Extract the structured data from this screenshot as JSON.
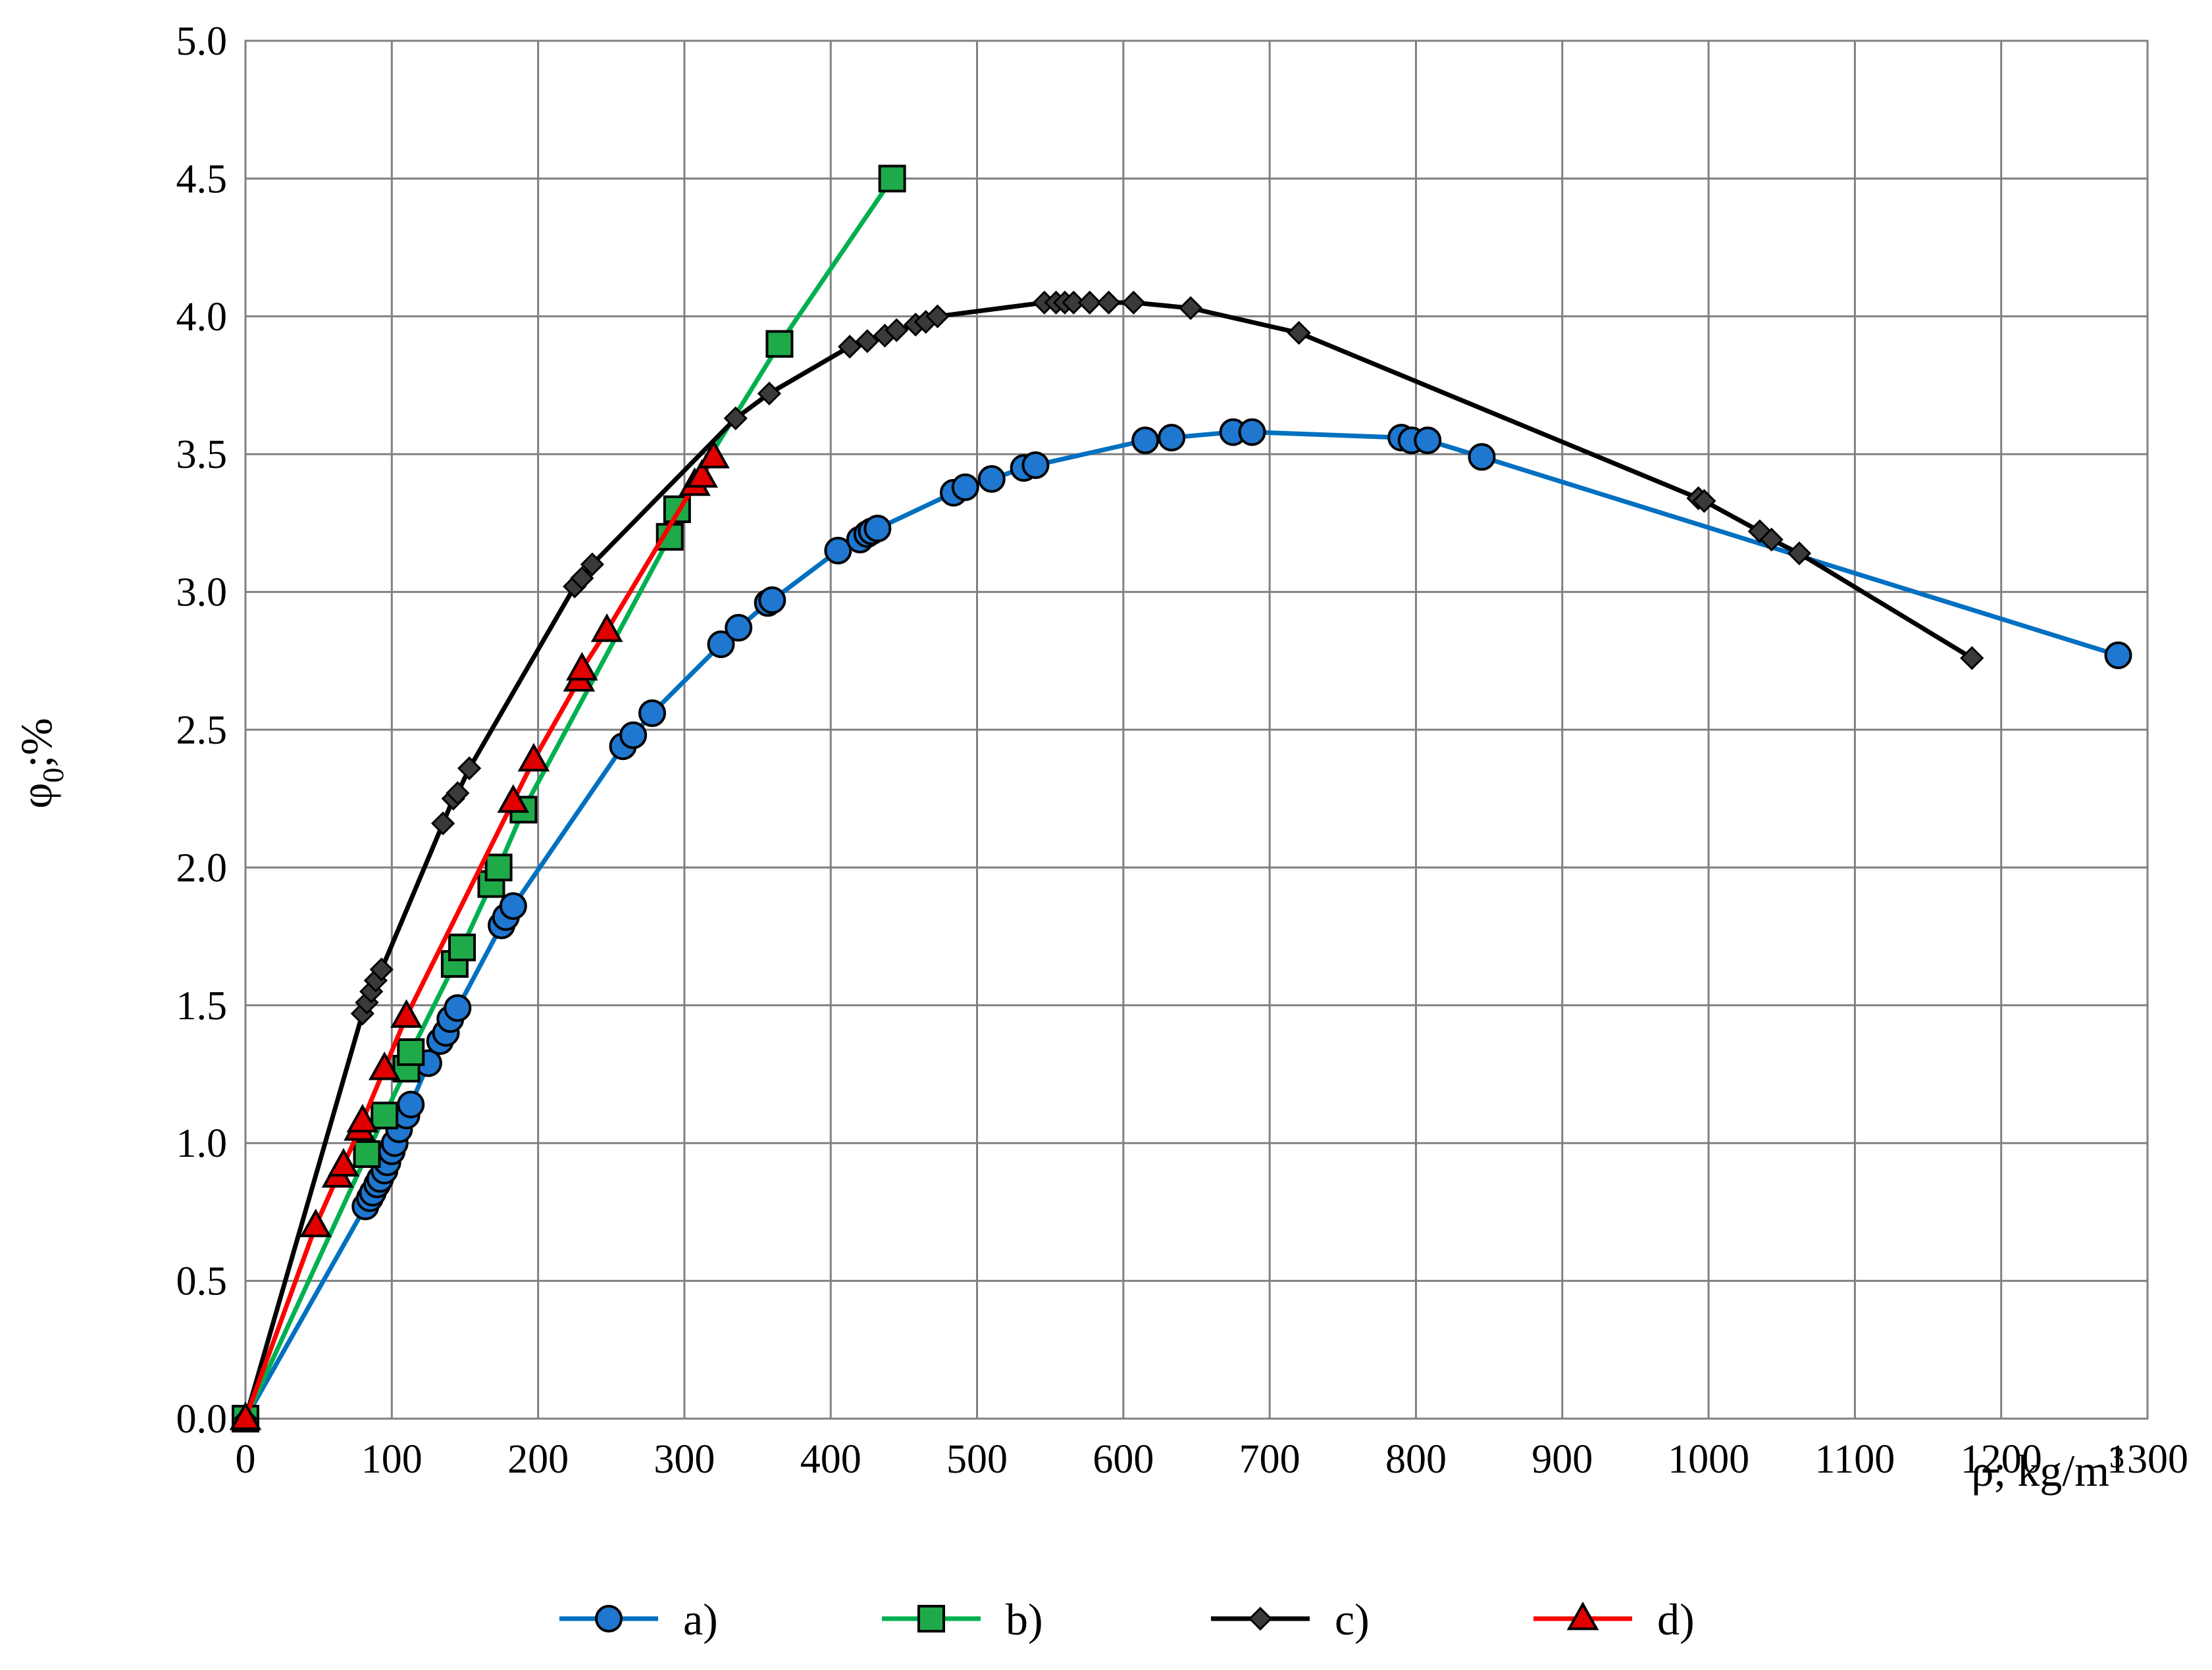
{
  "chart_data": {
    "type": "line",
    "title": "",
    "xlabel": "ρ; kg/m",
    "xlabel_superscript": "3",
    "ylabel": "φ",
    "ylabel_subscript": "0",
    "ylabel_suffix": ";%",
    "xlim": [
      0,
      1300
    ],
    "ylim": [
      0,
      5
    ],
    "grid": true,
    "x_ticks": [
      "0",
      "100",
      "200",
      "300",
      "400",
      "500",
      "600",
      "700",
      "800",
      "900",
      "1000",
      "1100",
      "1200",
      "1300"
    ],
    "y_ticks": [
      "0.0",
      "0.5",
      "1.0",
      "1.5",
      "2.0",
      "2.5",
      "3.0",
      "3.5",
      "4.0",
      "4.5",
      "5.0"
    ],
    "legend_position": "bottom",
    "series": [
      {
        "name": "a)",
        "color": "#0070C0",
        "marker": "circle",
        "marker_fill": "#1F77D0",
        "points": [
          [
            0,
            0
          ],
          [
            82,
            0.77
          ],
          [
            85,
            0.8
          ],
          [
            87,
            0.82
          ],
          [
            90,
            0.85
          ],
          [
            92,
            0.87
          ],
          [
            95,
            0.9
          ],
          [
            97,
            0.93
          ],
          [
            100,
            0.97
          ],
          [
            102,
            1.0
          ],
          [
            105,
            1.05
          ],
          [
            110,
            1.1
          ],
          [
            113,
            1.14
          ],
          [
            125,
            1.29
          ],
          [
            133,
            1.37
          ],
          [
            137,
            1.4
          ],
          [
            140,
            1.45
          ],
          [
            145,
            1.49
          ],
          [
            175,
            1.79
          ],
          [
            178,
            1.82
          ],
          [
            183,
            1.86
          ],
          [
            258,
            2.44
          ],
          [
            265,
            2.48
          ],
          [
            278,
            2.56
          ],
          [
            325,
            2.81
          ],
          [
            337,
            2.87
          ],
          [
            357,
            2.96
          ],
          [
            360,
            2.97
          ],
          [
            405,
            3.15
          ],
          [
            420,
            3.19
          ],
          [
            425,
            3.21
          ],
          [
            428,
            3.22
          ],
          [
            432,
            3.23
          ],
          [
            484,
            3.36
          ],
          [
            492,
            3.38
          ],
          [
            510,
            3.41
          ],
          [
            532,
            3.45
          ],
          [
            540,
            3.46
          ],
          [
            615,
            3.55
          ],
          [
            633,
            3.56
          ],
          [
            675,
            3.58
          ],
          [
            688,
            3.58
          ],
          [
            790,
            3.56
          ],
          [
            797,
            3.55
          ],
          [
            808,
            3.55
          ],
          [
            845,
            3.49
          ],
          [
            1280,
            2.77
          ]
        ]
      },
      {
        "name": "b)",
        "color": "#00B050",
        "marker": "square",
        "marker_fill": "#1FAA4A",
        "points": [
          [
            0,
            0
          ],
          [
            83,
            0.96
          ],
          [
            95,
            1.1
          ],
          [
            110,
            1.27
          ],
          [
            113,
            1.33
          ],
          [
            143,
            1.65
          ],
          [
            148,
            1.71
          ],
          [
            168,
            1.94
          ],
          [
            173,
            2.0
          ],
          [
            190,
            2.21
          ],
          [
            290,
            3.2
          ],
          [
            295,
            3.3
          ],
          [
            365,
            3.9
          ],
          [
            442,
            4.5
          ]
        ]
      },
      {
        "name": "c)",
        "color": "#000000",
        "marker": "diamond",
        "marker_fill": "#3A3A3A",
        "points": [
          [
            0,
            0
          ],
          [
            80,
            1.47
          ],
          [
            83,
            1.51
          ],
          [
            86,
            1.55
          ],
          [
            89,
            1.59
          ],
          [
            93,
            1.63
          ],
          [
            135,
            2.16
          ],
          [
            142,
            2.25
          ],
          [
            145,
            2.27
          ],
          [
            153,
            2.36
          ],
          [
            225,
            3.02
          ],
          [
            230,
            3.05
          ],
          [
            237,
            3.1
          ],
          [
            335,
            3.63
          ],
          [
            358,
            3.72
          ],
          [
            413,
            3.89
          ],
          [
            425,
            3.91
          ],
          [
            437,
            3.93
          ],
          [
            445,
            3.95
          ],
          [
            458,
            3.97
          ],
          [
            465,
            3.98
          ],
          [
            473,
            4.0
          ],
          [
            546,
            4.05
          ],
          [
            554,
            4.05
          ],
          [
            560,
            4.05
          ],
          [
            566,
            4.05
          ],
          [
            577,
            4.05
          ],
          [
            590,
            4.05
          ],
          [
            607,
            4.05
          ],
          [
            646,
            4.03
          ],
          [
            720,
            3.94
          ],
          [
            993,
            3.34
          ],
          [
            997,
            3.33
          ],
          [
            1035,
            3.22
          ],
          [
            1043,
            3.19
          ],
          [
            1062,
            3.14
          ],
          [
            1180,
            2.76
          ]
        ]
      },
      {
        "name": "d)",
        "color": "#FF0000",
        "marker": "triangle",
        "marker_fill": "#E00000",
        "points": [
          [
            0,
            0
          ],
          [
            48,
            0.7
          ],
          [
            63,
            0.88
          ],
          [
            67,
            0.92
          ],
          [
            78,
            1.05
          ],
          [
            80,
            1.08
          ],
          [
            95,
            1.27
          ],
          [
            110,
            1.46
          ],
          [
            183,
            2.24
          ],
          [
            197,
            2.39
          ],
          [
            228,
            2.68
          ],
          [
            230,
            2.72
          ],
          [
            247,
            2.86
          ],
          [
            307,
            3.39
          ],
          [
            312,
            3.42
          ],
          [
            320,
            3.49
          ]
        ]
      }
    ]
  }
}
